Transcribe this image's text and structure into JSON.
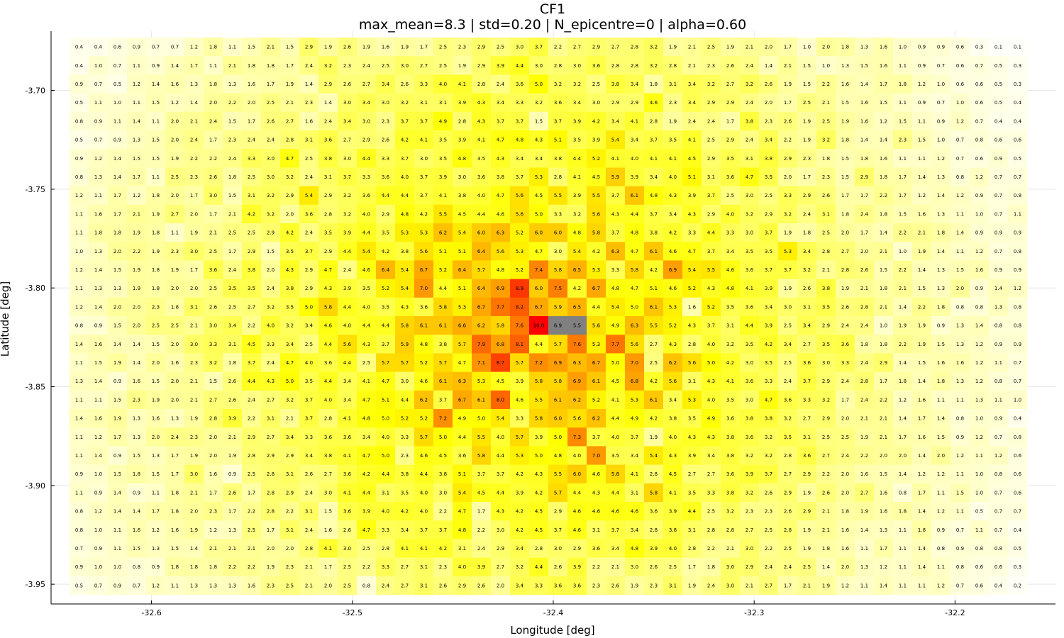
{
  "chart_data": {
    "type": "heatmap",
    "title": "CF1",
    "subtitle": "max_mean=8.3 | std=0.20 | N_epicentre=0 | alpha=0.60",
    "xlabel": "Longitude [deg]",
    "ylabel": "Latitude [deg]",
    "x_range": [
      -32.65,
      -32.15
    ],
    "y_range": [
      -3.96,
      -3.67
    ],
    "x_ticks": [
      {
        "value": -32.6,
        "label": "-32.6"
      },
      {
        "value": -32.5,
        "label": "-32.5"
      },
      {
        "value": -32.4,
        "label": "-32.4"
      },
      {
        "value": -32.3,
        "label": "-32.3"
      },
      {
        "value": -32.2,
        "label": "-32.2"
      }
    ],
    "y_ticks": [
      {
        "value": -3.7,
        "label": "-3.70"
      },
      {
        "value": -3.75,
        "label": "-3.75"
      },
      {
        "value": -3.8,
        "label": "-3.80"
      },
      {
        "value": -3.85,
        "label": "-3.85"
      },
      {
        "value": -3.9,
        "label": "-3.90"
      },
      {
        "value": -3.95,
        "label": "-3.95"
      }
    ],
    "grid": true,
    "colormap": {
      "low": "#ffffff",
      "mid": "#ffff00",
      "high": "#ff0000",
      "vmax_colour": 10
    },
    "highlight_color": "#808080",
    "highlight_cells": [
      [
        15,
        25
      ],
      [
        15,
        26
      ]
    ],
    "rows": [
      "0.4 0.4 0.6 0.9 0.7 0.7 1.2 1.8 1.1 1.5 2.1 1.5 2.9 1.9 2.6 1.9 1.6 1.9 1.7 2.5 2.3 2.9 2.5 3.0 3.7 2.2 2.7 2.9 2.7 2.8 3.2 1.9 2.1 2.5 1.9 2.1 2.0 1.7 1.0 2.0 1.8 1.3 1.6 1.0 0.9 0.9 0.6 0.3 0.1 0.1",
      "0.4 1.0 0.7 1.1 0.9 1.4 1.7 1.1 2.1 1.8 1.8 1.7 2.4 3.2 2.3 2.4 2.5 3.0 2.7 2.5 1.9 2.9 3.9 4.4 3.0 2.8 3.0 3.6 2.8 2.8 3.2 2.8 2.1 2.3 2.6 2.4 1.4 2.1 1.5 1.0 1.3 1.5 1.6 1.1 0.9 0.7 0.6 0.7 0.5 0.3",
      "0.9 0.7 0.5 1.2 1.4 1.6 1.3 1.8 1.3 1.6 1.7 1.9 1.4 2.9 2.6 2.7 3.4 2.6 3.3 4.0 4.1 2.8 2.4 3.6 5.0 3.2 3.2 2.5 3.8 3.4 1.8 3.1 3.4 3.2 2.7 3.2 2.6 1.9 1.5 2.2 1.6 1.4 1.7 1.8 1.2 1.0 0.6 0.6 0.5 0.3",
      "0.5 1.1 1.0 1.1 1.5 1.2 1.4 2.0 2.2 2.0 2.5 2.1 2.3 1.4 3.0 3.4 3.0 3.2 3.1 3.1 3.9 4.3 3.4 3.3 3.2 3.6 3.4 3.0 2.9 2.9 4.6 2.3 3.4 2.9 2.9 2.4 2.0 1.7 2.5 2.1 1.5 1.6 1.5 1.1 0.9 0.7 1.0 0.6 0.5 0.4",
      "0.8 0.9 1.1 1.4 1.1 2.0 2.1 2.4 1.5 1.7 2.6 2.7 1.6 2.4 3.4 3.0 2.3 3.7 3.7 4.9 2.8 4.3 3.7 3.7 1.5 3.7 3.9 4.2 3.4 4.1 2.8 1.9 2.4 2.4 1.7 3.8 2.3 2.6 1.9 2.5 1.9 1.6 1.2 1.5 1.1 0.9 1.2 0.7 0.4 0.4",
      "0.5 0.7 0.9 1.3 1.5 2.0 2.4 1.7 2.3 2.4 2.4 2.8 3.1 3.6 2.7 2.9 2.6 4.2 4.1 3.5 3.9 4.1 4.7 4.8 4.3 5.1 3.5 3.9 5.4 3.4 3.7 3.5 4.1 2.5 2.9 2.4 3.4 2.2 1.9 3.2 1.8 1.4 1.4 2.3 1.5 1.0 0.7 0.8 0.6 0.6",
      "0.9 1.2 1.4 1.5 1.5 1.9 2.2 2.2 2.4 3.3 3.0 4.7 2.5 3.8 3.0 4.4 3.3 3.7 3.0 3.5 4.8 3.5 4.3 3.4 3.4 3.8 4.4 5.2 4.1 4.0 4.1 4.1 4.5 2.9 3.5 3.1 3.8 2.9 2.3 1.8 1.5 1.8 1.6 1.1 1.1 1.2 0.7 0.6 0.9 0.5",
      "0.8 1.3 1.4 1.7 1.1 2.5 2.3 2.6 1.8 2.5 3.0 3.2 2.4 3.1 3.7 3.3 3.6 4.0 3.7 3.9 3.0 3.6 3.8 3.7 5.3 2.8 4.1 4.5 5.9 3.9 3.4 4.0 5.1 3.1 3.6 4.7 3.5 2.0 1.7 2.3 1.5 2.9 1.8 1.7 1.4 1.3 0.8 1.2 0.7 0.7",
      "1.2 1.1 1.7 1.2 1.8 2.0 1.7 3.0 1.5 3.1 3.2 2.9 5.4 2.9 3.2 3.6 4.4 4.4 3.7 4.1 3.8 4.0 4.7 5.6 4.5 5.5 3.9 5.5 3.7 6.1 4.8 4.3 3.9 3.7 2.5 3.0 2.5 3.3 2.9 2.6 1.7 1.7 2.2 1.7 1.2 1.4 1.2 0.9 0.7 0.8",
      "1.1 1.6 1.7 2.1 1.9 2.7 2.0 1.7 2.1 4.2 3.2 2.0 3.6 2.8 3.2 4.0 2.9 4.8 4.2 5.5 4.5 4.4 4.6 5.6 5.0 3.3 3.2 5.6 4.3 4.4 3.7 3.4 4.3 2.9 4.0 3.2 2.9 3.2 2.4 3.1 1.8 2.4 1.8 1.5 1.6 1.3 1.1 1.0 0.7 1.1",
      "1.1 1.8 1.8 1.9 1.8 1.1 1.9 2.1 2.5 2.5 2.9 4.2 2.4 3.5 3.9 4.4 3.5 5.3 5.3 6.2 5.4 6.0 6.3 5.2 6.0 6.0 4.8 5.8 3.7 4.8 3.8 4.2 3.3 4.4 3.3 3.0 3.7 1.9 1.8 2.5 2.0 1.7 1.4 2.2 2.1 1.8 1.4 0.9 0.9 0.9",
      "1.0 1.3 2.0 2.2 1.9 2.3 3.0 2.5 1.7 2.9 1.5 3.5 3.7 2.9 4.4 5.4 4.2 3.8 5.6 5.1 5.1 6.4 5.6 5.3 4.7 3.0 5.4 4.2 6.3 4.7 6.1 4.6 4.7 3.7 3.4 3.5 3.5 5.3 3.4 2.8 2.7 2.0 2.1 1.0 1.9 1.4 1.1 1.2 0.7 0.8",
      "1.2 1.4 1.5 1.9 1.8 1.9 1.7 3.6 2.4 3.8 2.0 4.3 2.9 4.7 2.4 4.6 6.4 5.4 6.7 5.2 6.4 5.7 4.8 5.2 7.4 5.8 6.5 5.3 3.3 5.8 4.2 6.9 5.4 5.5 4.6 3.6 3.7 3.7 3.2 2.1 2.8 2.6 1.5 2.2 1.4 1.3 1.5 1.6 0.9 0.9",
      "1.1 1.3 1.3 1.9 1.8 2.0 2.0 2.5 3.5 3.5 2.4 3.8 2.9 4.3 3.9 3.5 5.2 5.4 7.0 4.4 5.1 6.4 6.9 8.9 6.0 7.5 4.2 6.7 4.8 4.7 5.1 4.6 5.2 4.3 4.8 4.1 3.9 1.9 2.6 3.8 1.9 2.1 1.8 2.1 1.5 1.3 2.0 0.9 1.4 1.2",
      "1.2 1.4 2.0 2.0 2.3 1.8 3.1 2.6 2.5 2.7 3.2 3.5 5.0 5.8 4.4 4.0 3.5 4.3 3.6 5.8 5.3 6.7 7.7 8.2 6.7 5.9 6.5 4.4 5.4 5.0 6.1 5.3 1.6 5.2 3.5 3.6 3.4 3.0 3.1 3.5 2.6 2.8 2.1 1.4 2.2 1.8 0.8 0.8 1.3 0.8",
      "0.8 0.9 1.5 2.0 2.5 2.5 2.1 3.0 3.4 2.2 4.0 3.2 3.4 4.6 4.0 4.4 4.4 5.8 6.1 6.1 6.6 6.2 5.8 7.6 10.0 6.9 5.5 5.6 4.9 6.3 5.5 5.2 4.3 3.7 3.1 4.4 3.9 2.5 3.4 2.9 2.4 2.4 1.0 1.9 1.9 0.9 1.3 1.4 0.8 0.8",
      "1.4 1.6 1.4 1.4 1.5 2.0 3.0 3.3 3.1 4.5 3.3 3.4 2.5 4.4 5.6 4.3 3.7 5.9 4.8 3.8 5.7 7.9 6.8 8.1 4.4 5.7 7.6 5.3 7.7 5.6 2.7 4.3 2.8 4.0 3.2 3.5 4.2 3.4 2.7 3.5 3.6 1.8 1.8 2.2 1.9 1.5 1.3 1.2 0.9 0.9",
      "1.1 1.5 1.9 1.4 2.0 1.6 2.3 3.2 1.8 3.7 2.4 4.7 4.0 3.6 4.4 2.5 5.7 5.7 5.2 5.7 4.7 7.1 8.7 5.7 7.2 6.9 6.3 6.7 5.0 7.0 2.5 6.2 5.6 5.0 4.2 3.0 3.5 2.5 3.6 3.0 3.3 2.4 2.9 1.4 1.5 1.6 1.6 1.2 1.1 0.7",
      "1.3 1.4 0.9 1.6 1.5 2.0 2.1 1.5 2.6 4.4 4.3 5.0 3.5 4.4 3.4 4.1 4.7 3.0 4.6 6.1 6.3 5.3 4.5 3.9 5.8 5.8 6.9 6.1 4.5 6.8 4.2 5.6 3.1 4.3 4.1 3.6 3.3 2.4 3.7 2.9 2.4 2.8 1.7 1.8 1.4 1.8 1.3 1.2 0.8 0.7",
      "1.1 1.1 1.5 2.3 1.9 2.0 2.1 2.7 2.6 2.4 2.7 3.2 3.7 4.0 3.4 4.7 5.1 4.4 6.2 3.7 6.7 6.1 8.0 4.6 5.5 6.1 6.2 5.2 4.1 5.3 6.1 3.4 5.3 4.0 3.5 3.0 4.7 3.6 3.3 3.2 1.7 2.4 2.2 1.2 1.6 1.1 1.1 1.3 1.1 1.0",
      "1.4 1.6 1.9 1.3 1.6 1.3 1.9 2.8 3.9 2.2 3.1 2.1 3.7 2.8 4.1 4.8 5.0 5.2 5.2 7.2 4.9 5.0 5.4 3.3 5.8 6.0 5.6 6.2 4.4 4.9 4.2 3.8 3.5 4.9 3.6 3.8 3.8 3.2 2.7 2.9 2.0 2.1 2.1 1.4 1.7 1.4 0.8 1.0 0.9 0.4",
      "1.1 1.2 1.7 1.3 2.0 2.4 2.3 2.0 2.1 2.9 2.7 3.4 3.3 3.6 3.6 3.4 4.0 3.3 5.7 5.0 4.4 5.5 4.0 5.7 3.9 5.0 7.3 3.7 4.0 3.7 1.9 4.0 4.3 4.3 3.8 3.6 3.2 3.5 3.1 2.5 2.5 1.9 2.1 1.7 1.6 1.5 0.9 1.2 0.7 0.8",
      "1.1 1.4 0.9 1.5 1.3 1.7 1.9 2.0 1.9 2.8 2.9 2.9 3.4 3.8 4.1 4.7 5.0 2.3 4.6 4.5 3.6 5.8 4.4 5.3 5.0 4.8 4.0 7.0 3.5 3.4 5.4 4.3 3.9 3.4 3.8 3.2 3.2 2.8 3.6 2.7 2.4 2.2 2.0 2.0 1.4 2.0 1.2 1.1 1.2 0.6",
      "0.9 1.0 1.5 1.8 1.5 1.7 3.0 1.6 0.9 2.5 2.8 3.1 2.6 2.7 3.6 4.2 4.4 3.8 4.4 3.8 5.1 3.7 3.7 4.2 4.3 5.5 6.0 4.6 5.8 4.1 2.8 4.5 2.7 2.7 3.6 3.9 3.7 2.7 2.9 2.2 2.0 1.6 1.5 1.4 1.2 1.2 1.1 1.0 0.8 0.6",
      "1.1 0.9 1.4 0.9 1.1 1.8 2.1 1.7 2.6 1.7 2.8 2.9 2.4 3.0 4.1 4.4 3.1 3.5 4.0 3.0 5.4 4.5 4.4 3.9 4.2 5.7 4.4 4.3 4.4 3.1 5.8 4.1 3.5 3.3 3.8 3.2 2.6 2.9 1.9 2.6 2.0 2.7 1.6 0.8 1.7 1.1 1.5 1.0 0.7 0.6",
      "0.8 1.2 1.4 1.4 1.7 1.8 2.0 2.3 1.7 2.2 2.8 2.2 3.1 1.5 3.6 3.9 4.0 4.2 4.0 2.2 4.7 1.7 4.3 4.2 4.5 2.9 4.6 4.6 4.6 4.6 3.6 3.9 4.4 2.5 3.2 2.3 2.3 2.6 2.9 2.1 1.8 1.9 1.6 1.8 1.4 1.2 1.1 0.5 0.7 0.7",
      "0.8 1.0 1.1 1.6 1.2 1.6 1.9 1.2 1.3 2.5 1.7 3.1 2.4 1.6 2.6 4.7 3.3 3.4 3.7 3.7 4.8 2.2 3.0 4.2 4.5 3.7 4.6 3.1 3.7 3.4 2.8 3.8 3.1 2.8 2.8 2.7 2.5 2.8 1.9 2.1 1.6 1.4 1.3 1.1 1.8 0.9 0.7 1.1 0.7 0.4",
      "0.7 0.9 1.1 1.5 1.3 1.5 1.4 2.1 2.1 2.1 2.0 2.0 2.8 4.1 3.0 2.5 2.8 4.1 4.1 4.2 3.1 2.4 2.9 3.4 2.8 3.0 2.9 3.6 3.4 4.8 3.9 4.0 2.8 2.2 2.1 3.0 2.2 2.5 1.9 1.8 1.6 1.1 1.7 1.1 1.4 0.8 0.9 0.8 0.8 0.5",
      "0.9 1.0 1.0 0.8 0.9 1.8 1.8 1.8 2.2 2.2 1.9 2.3 2.1 1.7 2.5 2.2 3.3 2.7 3.1 2.3 4.0 3.9 2.7 3.2 4.4 2.6 3.9 2.2 2.1 3.0 2.6 2.5 1.7 1.8 3.0 2.9 2.4 2.4 2.5 1.4 2.0 1.3 1.2 1.1 1.4 1.1 0.8 0.6 0.6 0.3",
      "0.5 0.7 0.9 0.7 1.2 1.1 1.3 1.3 1.3 1.6 2.3 2.5 2.1 2.0 2.5 0.8 2.4 2.7 3.1 2.6 2.9 2.6 2.0 3.4 3.3 3.6 3.6 2.3 2.6 1.9 2.3 3.1 1.9 2.4 3.0 2.1 2.7 1.7 2.1 1.9 1.2 1.1 1.4 1.1 1.1 1.2 0.7 0.6 0.4 0.2"
    ]
  }
}
